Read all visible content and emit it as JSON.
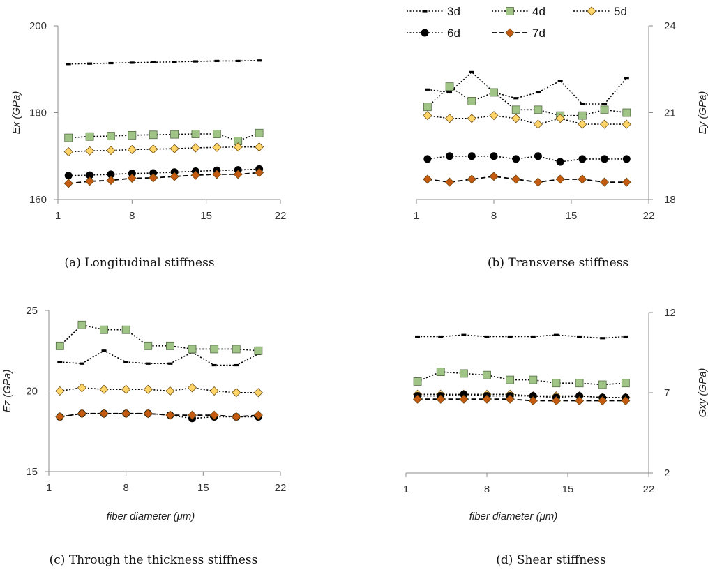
{
  "legend": {
    "items": [
      {
        "name": "3d",
        "color": "#000000",
        "dash": "dotted",
        "marker": "dash",
        "fill": "#000000"
      },
      {
        "name": "4d",
        "color": "#000000",
        "dash": "dotted",
        "marker": "square",
        "fill": "#9fc486"
      },
      {
        "name": "5d",
        "color": "#000000",
        "dash": "dotted",
        "marker": "diamond",
        "fill": "#ffd56a"
      },
      {
        "name": "6d",
        "color": "#000000",
        "dash": "dotted",
        "marker": "circle",
        "fill": "#000000"
      },
      {
        "name": "7d",
        "color": "#000000",
        "dash": "dashed",
        "marker": "diamond",
        "fill": "#c55a11"
      }
    ]
  },
  "chart_data": [
    {
      "type": "line",
      "caption": "(a) Longitudinal stiffness",
      "ylabel": "Ex (GPa)",
      "xlabel": "",
      "yaxis_side": "left",
      "xlim": [
        1,
        22
      ],
      "ylim": [
        160,
        200
      ],
      "xticks": [
        "1",
        "8",
        "15",
        "22"
      ],
      "yticks": [
        "160",
        "180",
        "200"
      ],
      "x": [
        2,
        4,
        6,
        8,
        10,
        12,
        14,
        16,
        18,
        20
      ],
      "series": [
        {
          "name": "3d",
          "values": [
            191.2,
            191.3,
            191.4,
            191.5,
            191.6,
            191.7,
            191.8,
            191.9,
            191.9,
            192.0
          ]
        },
        {
          "name": "4d",
          "values": [
            174.2,
            174.5,
            174.6,
            174.8,
            174.9,
            175.0,
            175.1,
            175.1,
            173.5,
            175.3
          ]
        },
        {
          "name": "5d",
          "values": [
            171.0,
            171.2,
            171.3,
            171.5,
            171.6,
            171.7,
            171.9,
            172.0,
            172.1,
            172.1
          ]
        },
        {
          "name": "6d",
          "values": [
            165.5,
            165.6,
            165.8,
            166.0,
            166.1,
            166.3,
            166.5,
            166.7,
            166.8,
            167.0
          ]
        },
        {
          "name": "7d",
          "values": [
            163.7,
            164.2,
            164.4,
            164.9,
            165.0,
            165.3,
            165.6,
            165.8,
            165.8,
            166.2
          ]
        }
      ]
    },
    {
      "type": "line",
      "caption": "(b) Transverse stiffness",
      "ylabel": "Ey (GPa)",
      "xlabel": "",
      "yaxis_side": "right",
      "xlim": [
        1,
        22
      ],
      "ylim": [
        18,
        24
      ],
      "xticks": [
        "1",
        "8",
        "15",
        "22"
      ],
      "yticks": [
        "18",
        "21",
        "24"
      ],
      "x": [
        2,
        4,
        6,
        8,
        10,
        12,
        14,
        16,
        18,
        20
      ],
      "series": [
        {
          "name": "3d",
          "values": [
            21.8,
            21.7,
            22.4,
            21.7,
            21.5,
            21.7,
            22.1,
            21.3,
            21.3,
            22.2
          ]
        },
        {
          "name": "4d",
          "values": [
            21.2,
            21.9,
            21.4,
            21.7,
            21.1,
            21.1,
            20.9,
            20.9,
            21.1,
            21.0
          ]
        },
        {
          "name": "5d",
          "values": [
            20.9,
            20.8,
            20.8,
            20.9,
            20.8,
            20.6,
            20.8,
            20.6,
            20.6,
            20.6
          ]
        },
        {
          "name": "6d",
          "values": [
            19.4,
            19.5,
            19.5,
            19.5,
            19.4,
            19.5,
            19.3,
            19.4,
            19.4,
            19.4
          ]
        },
        {
          "name": "7d",
          "values": [
            18.7,
            18.6,
            18.7,
            18.8,
            18.7,
            18.6,
            18.7,
            18.7,
            18.6,
            18.6
          ]
        }
      ]
    },
    {
      "type": "line",
      "caption": "(c) Through the thickness stiffness",
      "ylabel": "Ez (GPa)",
      "xlabel": "fiber diameter (μm)",
      "yaxis_side": "left",
      "xlim": [
        1,
        22
      ],
      "ylim": [
        15,
        25
      ],
      "xticks": [
        "1",
        "8",
        "15",
        "22"
      ],
      "yticks": [
        "15",
        "20",
        "25"
      ],
      "x": [
        2,
        4,
        6,
        8,
        10,
        12,
        14,
        16,
        18,
        20
      ],
      "series": [
        {
          "name": "3d",
          "values": [
            21.8,
            21.7,
            22.5,
            21.8,
            21.7,
            21.7,
            22.4,
            21.6,
            21.6,
            22.3
          ]
        },
        {
          "name": "4d",
          "values": [
            22.8,
            24.1,
            23.8,
            23.8,
            22.8,
            22.8,
            22.6,
            22.6,
            22.6,
            22.5
          ]
        },
        {
          "name": "5d",
          "values": [
            20.0,
            20.2,
            20.1,
            20.1,
            20.1,
            20.0,
            20.2,
            20.0,
            19.9,
            19.9
          ]
        },
        {
          "name": "6d",
          "values": [
            18.4,
            18.6,
            18.6,
            18.6,
            18.6,
            18.5,
            18.3,
            18.4,
            18.4,
            18.4
          ]
        },
        {
          "name": "7d",
          "values": [
            18.4,
            18.6,
            18.6,
            18.6,
            18.6,
            18.5,
            18.5,
            18.5,
            18.4,
            18.5
          ]
        }
      ]
    },
    {
      "type": "line",
      "caption": "(d) Shear stiffness",
      "ylabel": "Gxy (GPa)",
      "xlabel": "fiber diameter (μm)",
      "yaxis_side": "right",
      "xlim": [
        1,
        22
      ],
      "ylim": [
        2,
        12
      ],
      "xticks": [
        "1",
        "8",
        "15",
        "22"
      ],
      "yticks": [
        "2",
        "7",
        "12"
      ],
      "x": [
        2,
        4,
        6,
        8,
        10,
        12,
        14,
        16,
        18,
        20
      ],
      "series": [
        {
          "name": "3d",
          "values": [
            10.5,
            10.5,
            10.6,
            10.5,
            10.5,
            10.5,
            10.6,
            10.5,
            10.4,
            10.5
          ]
        },
        {
          "name": "4d",
          "values": [
            7.7,
            8.3,
            8.2,
            8.1,
            7.8,
            7.8,
            7.6,
            7.6,
            7.5,
            7.6
          ]
        },
        {
          "name": "5d",
          "values": [
            6.9,
            6.9,
            6.9,
            6.9,
            6.9,
            6.8,
            6.8,
            6.8,
            6.7,
            6.7
          ]
        },
        {
          "name": "6d",
          "values": [
            6.8,
            6.8,
            6.9,
            6.8,
            6.8,
            6.8,
            6.7,
            6.8,
            6.7,
            6.7
          ]
        },
        {
          "name": "7d",
          "values": [
            6.6,
            6.6,
            6.6,
            6.6,
            6.6,
            6.5,
            6.5,
            6.5,
            6.5,
            6.5
          ]
        }
      ]
    }
  ]
}
